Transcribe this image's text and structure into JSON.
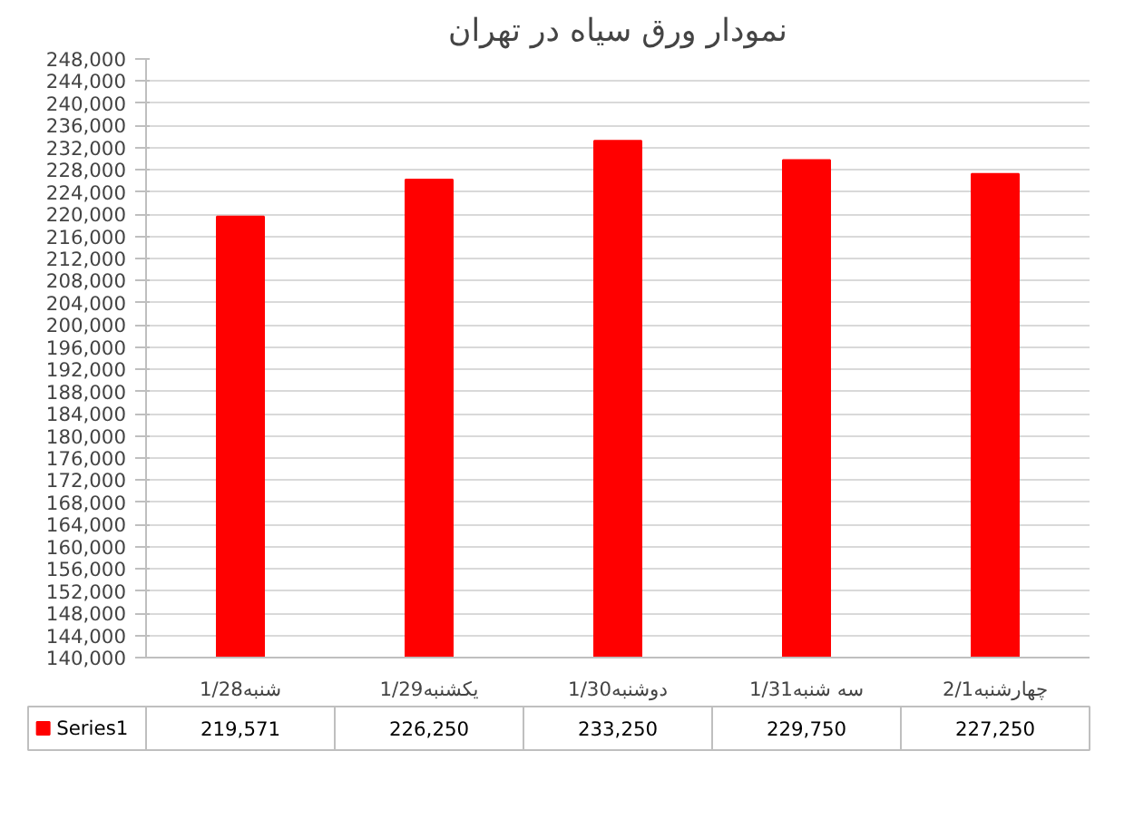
{
  "chart_data": {
    "type": "bar",
    "title": "نمودار ورق سیاه در تهران",
    "categories": [
      "شنبه1/28",
      "یکشنبه1/29",
      "دوشنبه1/30",
      "سه شنبه1/31",
      "چهارشنبه2/1"
    ],
    "series": [
      {
        "name": "Series1",
        "color": "#ff0000",
        "values": [
          219571,
          226250,
          233250,
          229750,
          227250
        ],
        "value_labels": [
          "219,571",
          "226,250",
          "233,250",
          "229,750",
          "227,250"
        ]
      }
    ],
    "ylim": [
      140000,
      248000
    ],
    "yticks": [
      {
        "value": 140000,
        "label": "140,000"
      },
      {
        "value": 144000,
        "label": "144,000"
      },
      {
        "value": 148000,
        "label": "148,000"
      },
      {
        "value": 152000,
        "label": "152,000"
      },
      {
        "value": 156000,
        "label": "156,000"
      },
      {
        "value": 160000,
        "label": "160,000"
      },
      {
        "value": 164000,
        "label": "164,000"
      },
      {
        "value": 168000,
        "label": "168,000"
      },
      {
        "value": 172000,
        "label": "172,000"
      },
      {
        "value": 176000,
        "label": "176,000"
      },
      {
        "value": 180000,
        "label": "180,000"
      },
      {
        "value": 184000,
        "label": "184,000"
      },
      {
        "value": 188000,
        "label": "188,000"
      },
      {
        "value": 192000,
        "label": "192,000"
      },
      {
        "value": 196000,
        "label": "196,000"
      },
      {
        "value": 200000,
        "label": "200,000"
      },
      {
        "value": 204000,
        "label": "204,000"
      },
      {
        "value": 208000,
        "label": "208,000"
      },
      {
        "value": 212000,
        "label": "212,000"
      },
      {
        "value": 216000,
        "label": "216,000"
      },
      {
        "value": 220000,
        "label": "220,000"
      },
      {
        "value": 224000,
        "label": "224,000"
      },
      {
        "value": 228000,
        "label": "228,000"
      },
      {
        "value": 232000,
        "label": "232,000"
      },
      {
        "value": 236000,
        "label": "236,000"
      },
      {
        "value": 240000,
        "label": "240,000"
      },
      {
        "value": 244000,
        "label": "244,000"
      },
      {
        "value": 248000,
        "label": "248,000"
      }
    ],
    "grid": "y",
    "legend": "bottom left"
  }
}
